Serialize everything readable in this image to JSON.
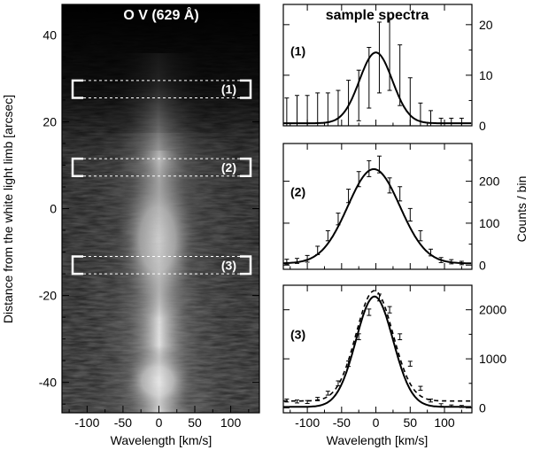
{
  "chart_data": [
    {
      "type": "heatmap",
      "title": "O V (629 Å)",
      "xlabel": "Wavelength  [km/s]",
      "ylabel": "Distance from the white light limb [arcsec]",
      "xlim": [
        -135,
        140
      ],
      "ylim": [
        -47,
        47
      ],
      "xticks": [
        -100,
        -50,
        0,
        50,
        100
      ],
      "yticks": [
        -40,
        -20,
        0,
        20,
        40
      ],
      "grayscale": "black-low white-high",
      "sample_regions": [
        {
          "label": "(1)",
          "y_range": [
            25.5,
            29.5
          ]
        },
        {
          "label": "(2)",
          "y_range": [
            7.5,
            11.5
          ]
        },
        {
          "label": "(3)",
          "y_range": [
            -15,
            -11
          ]
        }
      ]
    },
    {
      "type": "line",
      "title": "sample spectra",
      "label": "(1)",
      "xlim": [
        -135,
        140
      ],
      "ylim": [
        0,
        24
      ],
      "yticks": [
        0,
        10,
        20
      ],
      "x": [
        -130,
        -115,
        -100,
        -85,
        -70,
        -55,
        -40,
        -25,
        -10,
        5,
        20,
        35,
        50,
        65,
        80,
        95,
        110,
        125
      ],
      "values": [
        1.5,
        2,
        2,
        2.5,
        2.5,
        3,
        4,
        6,
        9.5,
        13.5,
        14,
        10,
        4.5,
        1.5,
        1,
        0.5,
        0.5,
        0.5
      ],
      "error_bars": [
        4,
        4,
        4,
        4,
        4,
        4,
        5,
        5,
        6,
        7,
        7,
        6,
        5,
        3,
        2,
        1,
        1,
        1
      ],
      "fit": {
        "amplitude": 14,
        "center": 0,
        "sigma": 24,
        "baseline": 0.5
      }
    },
    {
      "type": "line",
      "label": "(2)",
      "ylabel": "Counts / bin",
      "xlim": [
        -135,
        140
      ],
      "ylim": [
        -10,
        290
      ],
      "yticks": [
        0,
        100,
        200
      ],
      "x": [
        -130,
        -115,
        -100,
        -85,
        -70,
        -55,
        -40,
        -25,
        -10,
        5,
        20,
        35,
        50,
        65,
        80,
        95,
        110,
        125
      ],
      "values": [
        8,
        10,
        15,
        35,
        70,
        110,
        165,
        205,
        230,
        240,
        190,
        170,
        120,
        70,
        30,
        12,
        8,
        5
      ],
      "error_bars": [
        6,
        6,
        8,
        10,
        12,
        14,
        16,
        18,
        19,
        20,
        18,
        17,
        15,
        12,
        8,
        6,
        5,
        4
      ],
      "fit": {
        "amplitude": 225,
        "center": -3,
        "sigma": 38,
        "baseline": 4
      }
    },
    {
      "type": "line",
      "label": "(3)",
      "xlabel": "Wavelength  [km/s]",
      "xlim": [
        -135,
        140
      ],
      "xticks": [
        -100,
        -50,
        0,
        50,
        100
      ],
      "ylim": [
        -100,
        2500
      ],
      "yticks": [
        0,
        1000,
        2000
      ],
      "x": [
        -130,
        -115,
        -100,
        -85,
        -70,
        -55,
        -40,
        -25,
        -10,
        5,
        20,
        35,
        50,
        65,
        80,
        95,
        110,
        125
      ],
      "values": [
        150,
        130,
        120,
        180,
        300,
        500,
        900,
        1450,
        1950,
        2250,
        2000,
        1450,
        900,
        400,
        150,
        60,
        40,
        30
      ],
      "error_bars": [
        30,
        30,
        30,
        35,
        40,
        50,
        55,
        60,
        65,
        70,
        65,
        60,
        50,
        40,
        30,
        25,
        20,
        20
      ],
      "fit": {
        "amplitude": 2250,
        "center": -2,
        "sigma": 27,
        "baseline": 20
      },
      "dashed_fit": {
        "amplitude": 2250,
        "center": -2,
        "sigma": 27,
        "baseline": 140
      }
    }
  ]
}
